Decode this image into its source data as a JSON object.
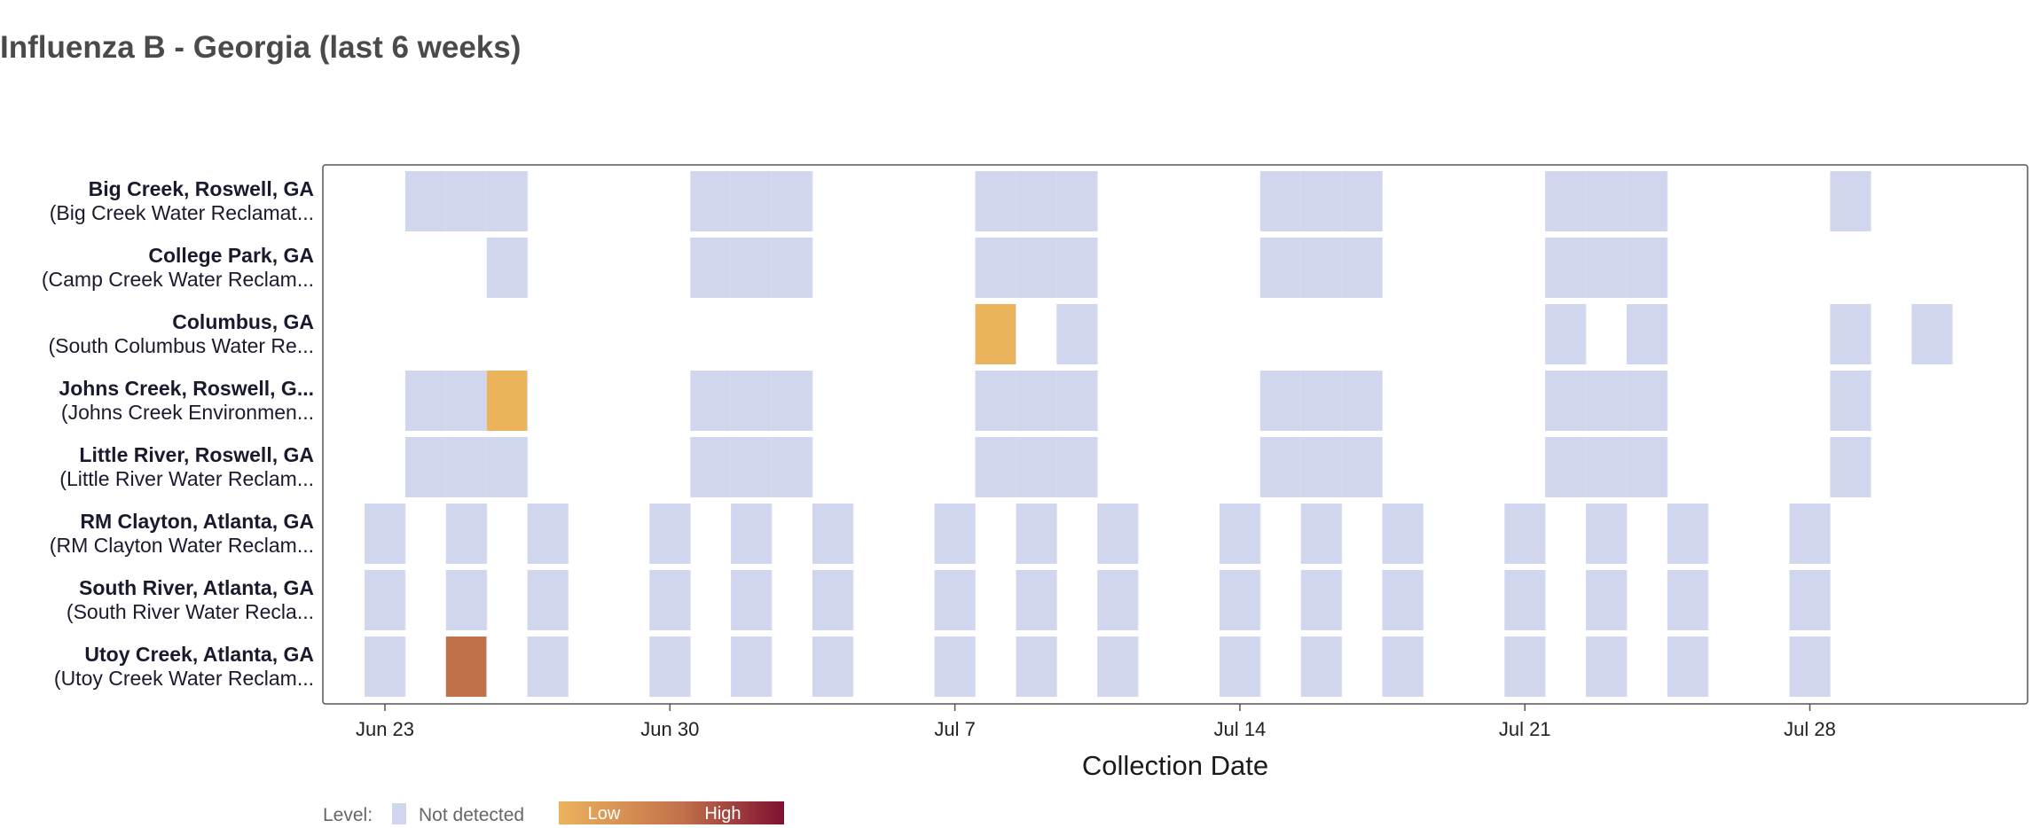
{
  "title": "Influenza B - Georgia (last 6 weeks)",
  "colors": {
    "not_detected": "#cfd6ed",
    "low": "#ecb35d",
    "mid": "#c1714a",
    "high": "#7e1131",
    "frame": "#555555",
    "label_bold": "#1a1a2e",
    "tick_text": "#222222",
    "legend_text": "#666666"
  },
  "legend": {
    "level_label": "Level:",
    "not_detected_label": "Not detected",
    "low_label": "Low",
    "high_label": "High"
  },
  "chart_data": {
    "type": "heatmap",
    "title": "Influenza B - Georgia (last 6 weeks)",
    "xlabel": "Collection Date",
    "ylabel": "",
    "x_range": [
      "2024-06-22",
      "2024-08-03"
    ],
    "x_ticks": [
      {
        "date": "2024-06-23",
        "label": "Jun 23"
      },
      {
        "date": "2024-06-30",
        "label": "Jun 30"
      },
      {
        "date": "2024-07-07",
        "label": "Jul 7"
      },
      {
        "date": "2024-07-14",
        "label": "Jul 14"
      },
      {
        "date": "2024-07-21",
        "label": "Jul 21"
      },
      {
        "date": "2024-07-28",
        "label": "Jul 28"
      }
    ],
    "rows": [
      {
        "name": "Big Creek, Roswell, GA",
        "facility": "(Big Creek Water Reclamat...",
        "cells": [
          {
            "date": "2024-06-24",
            "level": "Not detected"
          },
          {
            "date": "2024-06-25",
            "level": "Not detected"
          },
          {
            "date": "2024-06-26",
            "level": "Not detected"
          },
          {
            "date": "2024-07-01",
            "level": "Not detected"
          },
          {
            "date": "2024-07-02",
            "level": "Not detected"
          },
          {
            "date": "2024-07-03",
            "level": "Not detected"
          },
          {
            "date": "2024-07-08",
            "level": "Not detected"
          },
          {
            "date": "2024-07-09",
            "level": "Not detected"
          },
          {
            "date": "2024-07-10",
            "level": "Not detected"
          },
          {
            "date": "2024-07-15",
            "level": "Not detected"
          },
          {
            "date": "2024-07-16",
            "level": "Not detected"
          },
          {
            "date": "2024-07-17",
            "level": "Not detected"
          },
          {
            "date": "2024-07-22",
            "level": "Not detected"
          },
          {
            "date": "2024-07-23",
            "level": "Not detected"
          },
          {
            "date": "2024-07-24",
            "level": "Not detected"
          },
          {
            "date": "2024-07-29",
            "level": "Not detected"
          }
        ]
      },
      {
        "name": "College Park, GA",
        "facility": "(Camp Creek Water Reclam...",
        "cells": [
          {
            "date": "2024-06-26",
            "level": "Not detected"
          },
          {
            "date": "2024-07-01",
            "level": "Not detected"
          },
          {
            "date": "2024-07-02",
            "level": "Not detected"
          },
          {
            "date": "2024-07-03",
            "level": "Not detected"
          },
          {
            "date": "2024-07-08",
            "level": "Not detected"
          },
          {
            "date": "2024-07-09",
            "level": "Not detected"
          },
          {
            "date": "2024-07-10",
            "level": "Not detected"
          },
          {
            "date": "2024-07-15",
            "level": "Not detected"
          },
          {
            "date": "2024-07-16",
            "level": "Not detected"
          },
          {
            "date": "2024-07-17",
            "level": "Not detected"
          },
          {
            "date": "2024-07-22",
            "level": "Not detected"
          },
          {
            "date": "2024-07-23",
            "level": "Not detected"
          },
          {
            "date": "2024-07-24",
            "level": "Not detected"
          }
        ]
      },
      {
        "name": "Columbus, GA",
        "facility": "(South Columbus Water Re...",
        "cells": [
          {
            "date": "2024-07-08",
            "level": "Low"
          },
          {
            "date": "2024-07-10",
            "level": "Not detected"
          },
          {
            "date": "2024-07-22",
            "level": "Not detected"
          },
          {
            "date": "2024-07-24",
            "level": "Not detected"
          },
          {
            "date": "2024-07-29",
            "level": "Not detected"
          },
          {
            "date": "2024-07-31",
            "level": "Not detected"
          }
        ]
      },
      {
        "name": "Johns Creek, Roswell, G...",
        "facility": "(Johns Creek Environmen...",
        "cells": [
          {
            "date": "2024-06-24",
            "level": "Not detected"
          },
          {
            "date": "2024-06-25",
            "level": "Not detected"
          },
          {
            "date": "2024-06-26",
            "level": "Low"
          },
          {
            "date": "2024-07-01",
            "level": "Not detected"
          },
          {
            "date": "2024-07-02",
            "level": "Not detected"
          },
          {
            "date": "2024-07-03",
            "level": "Not detected"
          },
          {
            "date": "2024-07-08",
            "level": "Not detected"
          },
          {
            "date": "2024-07-09",
            "level": "Not detected"
          },
          {
            "date": "2024-07-10",
            "level": "Not detected"
          },
          {
            "date": "2024-07-15",
            "level": "Not detected"
          },
          {
            "date": "2024-07-16",
            "level": "Not detected"
          },
          {
            "date": "2024-07-17",
            "level": "Not detected"
          },
          {
            "date": "2024-07-22",
            "level": "Not detected"
          },
          {
            "date": "2024-07-23",
            "level": "Not detected"
          },
          {
            "date": "2024-07-24",
            "level": "Not detected"
          },
          {
            "date": "2024-07-29",
            "level": "Not detected"
          }
        ]
      },
      {
        "name": "Little River, Roswell, GA",
        "facility": "(Little River Water Reclam...",
        "cells": [
          {
            "date": "2024-06-24",
            "level": "Not detected"
          },
          {
            "date": "2024-06-25",
            "level": "Not detected"
          },
          {
            "date": "2024-06-26",
            "level": "Not detected"
          },
          {
            "date": "2024-07-01",
            "level": "Not detected"
          },
          {
            "date": "2024-07-02",
            "level": "Not detected"
          },
          {
            "date": "2024-07-03",
            "level": "Not detected"
          },
          {
            "date": "2024-07-08",
            "level": "Not detected"
          },
          {
            "date": "2024-07-09",
            "level": "Not detected"
          },
          {
            "date": "2024-07-10",
            "level": "Not detected"
          },
          {
            "date": "2024-07-15",
            "level": "Not detected"
          },
          {
            "date": "2024-07-16",
            "level": "Not detected"
          },
          {
            "date": "2024-07-17",
            "level": "Not detected"
          },
          {
            "date": "2024-07-22",
            "level": "Not detected"
          },
          {
            "date": "2024-07-23",
            "level": "Not detected"
          },
          {
            "date": "2024-07-24",
            "level": "Not detected"
          },
          {
            "date": "2024-07-29",
            "level": "Not detected"
          }
        ]
      },
      {
        "name": "RM Clayton, Atlanta, GA",
        "facility": "(RM Clayton Water Reclam...",
        "cells": [
          {
            "date": "2024-06-23",
            "level": "Not detected"
          },
          {
            "date": "2024-06-25",
            "level": "Not detected"
          },
          {
            "date": "2024-06-27",
            "level": "Not detected"
          },
          {
            "date": "2024-06-30",
            "level": "Not detected"
          },
          {
            "date": "2024-07-02",
            "level": "Not detected"
          },
          {
            "date": "2024-07-04",
            "level": "Not detected"
          },
          {
            "date": "2024-07-07",
            "level": "Not detected"
          },
          {
            "date": "2024-07-09",
            "level": "Not detected"
          },
          {
            "date": "2024-07-11",
            "level": "Not detected"
          },
          {
            "date": "2024-07-14",
            "level": "Not detected"
          },
          {
            "date": "2024-07-16",
            "level": "Not detected"
          },
          {
            "date": "2024-07-18",
            "level": "Not detected"
          },
          {
            "date": "2024-07-21",
            "level": "Not detected"
          },
          {
            "date": "2024-07-23",
            "level": "Not detected"
          },
          {
            "date": "2024-07-25",
            "level": "Not detected"
          },
          {
            "date": "2024-07-28",
            "level": "Not detected"
          }
        ]
      },
      {
        "name": "South River, Atlanta, GA",
        "facility": "(South River Water Recla...",
        "cells": [
          {
            "date": "2024-06-23",
            "level": "Not detected"
          },
          {
            "date": "2024-06-25",
            "level": "Not detected"
          },
          {
            "date": "2024-06-27",
            "level": "Not detected"
          },
          {
            "date": "2024-06-30",
            "level": "Not detected"
          },
          {
            "date": "2024-07-02",
            "level": "Not detected"
          },
          {
            "date": "2024-07-04",
            "level": "Not detected"
          },
          {
            "date": "2024-07-07",
            "level": "Not detected"
          },
          {
            "date": "2024-07-09",
            "level": "Not detected"
          },
          {
            "date": "2024-07-11",
            "level": "Not detected"
          },
          {
            "date": "2024-07-14",
            "level": "Not detected"
          },
          {
            "date": "2024-07-16",
            "level": "Not detected"
          },
          {
            "date": "2024-07-18",
            "level": "Not detected"
          },
          {
            "date": "2024-07-21",
            "level": "Not detected"
          },
          {
            "date": "2024-07-23",
            "level": "Not detected"
          },
          {
            "date": "2024-07-25",
            "level": "Not detected"
          },
          {
            "date": "2024-07-28",
            "level": "Not detected"
          }
        ]
      },
      {
        "name": "Utoy Creek, Atlanta, GA",
        "facility": "(Utoy Creek Water Reclam...",
        "cells": [
          {
            "date": "2024-06-23",
            "level": "Not detected"
          },
          {
            "date": "2024-06-25",
            "level": "Moderate"
          },
          {
            "date": "2024-06-27",
            "level": "Not detected"
          },
          {
            "date": "2024-06-30",
            "level": "Not detected"
          },
          {
            "date": "2024-07-02",
            "level": "Not detected"
          },
          {
            "date": "2024-07-04",
            "level": "Not detected"
          },
          {
            "date": "2024-07-07",
            "level": "Not detected"
          },
          {
            "date": "2024-07-09",
            "level": "Not detected"
          },
          {
            "date": "2024-07-11",
            "level": "Not detected"
          },
          {
            "date": "2024-07-14",
            "level": "Not detected"
          },
          {
            "date": "2024-07-16",
            "level": "Not detected"
          },
          {
            "date": "2024-07-18",
            "level": "Not detected"
          },
          {
            "date": "2024-07-21",
            "level": "Not detected"
          },
          {
            "date": "2024-07-23",
            "level": "Not detected"
          },
          {
            "date": "2024-07-25",
            "level": "Not detected"
          },
          {
            "date": "2024-07-28",
            "level": "Not detected"
          }
        ]
      }
    ]
  }
}
